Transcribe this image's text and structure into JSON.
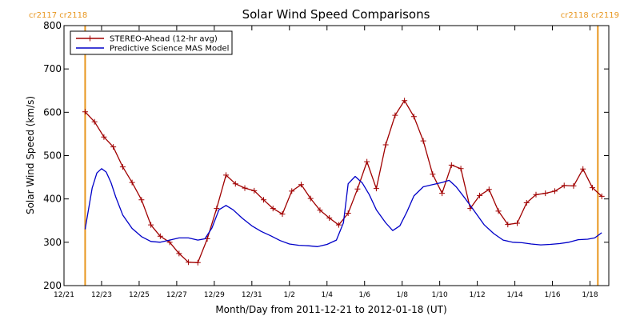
{
  "chart_data": {
    "type": "line",
    "title": "Solar Wind Speed Comparisons",
    "xlabel": "Month/Day from 2011-12-21 to 2012-01-18 (UT)",
    "ylabel": "Solar Wind Speed (km/s)",
    "xlim": [
      "2011-12-21",
      "2012-01-19"
    ],
    "ylim": [
      200,
      800
    ],
    "yticks": [
      200,
      300,
      400,
      500,
      600,
      700,
      800
    ],
    "xticks": [
      {
        "date": "2011-12-21",
        "label": "12/21"
      },
      {
        "date": "2011-12-23",
        "label": "12/23"
      },
      {
        "date": "2011-12-25",
        "label": "12/25"
      },
      {
        "date": "2011-12-27",
        "label": "12/27"
      },
      {
        "date": "2011-12-29",
        "label": "12/29"
      },
      {
        "date": "2011-12-31",
        "label": "12/31"
      },
      {
        "date": "2012-01-02",
        "label": "1/2"
      },
      {
        "date": "2012-01-04",
        "label": "1/4"
      },
      {
        "date": "2012-01-06",
        "label": "1/6"
      },
      {
        "date": "2012-01-08",
        "label": "1/8"
      },
      {
        "date": "2012-01-10",
        "label": "1/10"
      },
      {
        "date": "2012-01-12",
        "label": "1/12"
      },
      {
        "date": "2012-01-14",
        "label": "1/14"
      },
      {
        "date": "2012-01-16",
        "label": "1/16"
      },
      {
        "date": "2012-01-18",
        "label": "1/18"
      }
    ],
    "carrington_markers": [
      {
        "date": "2011-12-22 03:00",
        "labels": [
          "cr2117",
          "cr2118"
        ],
        "label_align": "left"
      },
      {
        "date": "2012-01-18 10:00",
        "labels": [
          "cr2118",
          "cr2119"
        ],
        "label_align": "right"
      }
    ],
    "legend_position": "top-left",
    "grid": false,
    "series": [
      {
        "name": "STEREO-Ahead (12-hr avg)",
        "color": "#a00000",
        "marker": "plus",
        "points": [
          [
            "2011-12-22 03:00",
            601
          ],
          [
            "2011-12-22 15:00",
            578
          ],
          [
            "2011-12-23 03:00",
            543
          ],
          [
            "2011-12-23 15:00",
            520
          ],
          [
            "2011-12-24 03:00",
            474
          ],
          [
            "2011-12-24 15:00",
            438
          ],
          [
            "2011-12-25 03:00",
            398
          ],
          [
            "2011-12-25 15:00",
            340
          ],
          [
            "2011-12-26 03:00",
            314
          ],
          [
            "2011-12-26 15:00",
            300
          ],
          [
            "2011-12-27 03:00",
            274
          ],
          [
            "2011-12-27 15:00",
            254
          ],
          [
            "2011-12-28 03:00",
            253
          ],
          [
            "2011-12-28 15:00",
            308
          ],
          [
            "2011-12-29 03:00",
            378
          ],
          [
            "2011-12-29 15:00",
            455
          ],
          [
            "2011-12-30 03:00",
            435
          ],
          [
            "2011-12-30 15:00",
            425
          ],
          [
            "2011-12-31 03:00",
            419
          ],
          [
            "2011-12-31 15:00",
            398
          ],
          [
            "2012-01-01 03:00",
            378
          ],
          [
            "2012-01-01 15:00",
            365
          ],
          [
            "2012-01-02 03:00",
            418
          ],
          [
            "2012-01-02 15:00",
            433
          ],
          [
            "2012-01-03 03:00",
            401
          ],
          [
            "2012-01-03 15:00",
            374
          ],
          [
            "2012-01-04 03:00",
            356
          ],
          [
            "2012-01-04 15:00",
            340
          ],
          [
            "2012-01-05 03:00",
            367
          ],
          [
            "2012-01-05 15:00",
            423
          ],
          [
            "2012-01-06 03:00",
            486
          ],
          [
            "2012-01-06 15:00",
            424
          ],
          [
            "2012-01-07 03:00",
            525
          ],
          [
            "2012-01-07 15:00",
            593
          ],
          [
            "2012-01-08 03:00",
            627
          ],
          [
            "2012-01-08 15:00",
            590
          ],
          [
            "2012-01-09 03:00",
            534
          ],
          [
            "2012-01-09 15:00",
            457
          ],
          [
            "2012-01-10 03:00",
            413
          ],
          [
            "2012-01-10 15:00",
            478
          ],
          [
            "2012-01-11 03:00",
            470
          ],
          [
            "2012-01-11 15:00",
            378
          ],
          [
            "2012-01-12 03:00",
            408
          ],
          [
            "2012-01-12 15:00",
            422
          ],
          [
            "2012-01-13 03:00",
            372
          ],
          [
            "2012-01-13 15:00",
            341
          ],
          [
            "2012-01-14 03:00",
            344
          ],
          [
            "2012-01-14 15:00",
            391
          ],
          [
            "2012-01-15 03:00",
            410
          ],
          [
            "2012-01-15 15:00",
            413
          ],
          [
            "2012-01-16 03:00",
            418
          ],
          [
            "2012-01-16 15:00",
            431
          ],
          [
            "2012-01-17 03:00",
            430
          ],
          [
            "2012-01-17 15:00",
            469
          ],
          [
            "2012-01-18 03:00",
            426
          ],
          [
            "2012-01-18 15:00",
            406
          ]
        ]
      },
      {
        "name": "Predictive Science MAS Model",
        "color": "#0000c8",
        "marker": "none",
        "points": [
          [
            "2011-12-22 03:00",
            330
          ],
          [
            "2011-12-22 12:00",
            425
          ],
          [
            "2011-12-22 18:00",
            460
          ],
          [
            "2011-12-23 00:00",
            470
          ],
          [
            "2011-12-23 06:00",
            462
          ],
          [
            "2011-12-23 12:00",
            438
          ],
          [
            "2011-12-23 18:00",
            405
          ],
          [
            "2011-12-24 03:00",
            363
          ],
          [
            "2011-12-24 15:00",
            332
          ],
          [
            "2011-12-25 03:00",
            313
          ],
          [
            "2011-12-25 15:00",
            302
          ],
          [
            "2011-12-26 03:00",
            300
          ],
          [
            "2011-12-26 15:00",
            305
          ],
          [
            "2011-12-27 03:00",
            310
          ],
          [
            "2011-12-27 15:00",
            310
          ],
          [
            "2011-12-28 03:00",
            305
          ],
          [
            "2011-12-28 12:00",
            308
          ],
          [
            "2011-12-28 21:00",
            333
          ],
          [
            "2011-12-29 06:00",
            375
          ],
          [
            "2011-12-29 15:00",
            385
          ],
          [
            "2011-12-30 00:00",
            375
          ],
          [
            "2011-12-30 12:00",
            355
          ],
          [
            "2011-12-31 00:00",
            338
          ],
          [
            "2011-12-31 12:00",
            325
          ],
          [
            "2012-01-01 00:00",
            315
          ],
          [
            "2012-01-01 12:00",
            304
          ],
          [
            "2012-01-02 00:00",
            296
          ],
          [
            "2012-01-02 12:00",
            293
          ],
          [
            "2012-01-03 00:00",
            292
          ],
          [
            "2012-01-03 12:00",
            290
          ],
          [
            "2012-01-04 00:00",
            295
          ],
          [
            "2012-01-04 12:00",
            305
          ],
          [
            "2012-01-04 21:00",
            345
          ],
          [
            "2012-01-05 03:00",
            435
          ],
          [
            "2012-01-05 12:00",
            452
          ],
          [
            "2012-01-05 21:00",
            437
          ],
          [
            "2012-01-06 06:00",
            410
          ],
          [
            "2012-01-06 15:00",
            375
          ],
          [
            "2012-01-07 03:00",
            345
          ],
          [
            "2012-01-07 12:00",
            327
          ],
          [
            "2012-01-07 21:00",
            338
          ],
          [
            "2012-01-08 06:00",
            370
          ],
          [
            "2012-01-08 15:00",
            407
          ],
          [
            "2012-01-09 03:00",
            428
          ],
          [
            "2012-01-09 15:00",
            433
          ],
          [
            "2012-01-10 03:00",
            438
          ],
          [
            "2012-01-10 12:00",
            443
          ],
          [
            "2012-01-10 21:00",
            428
          ],
          [
            "2012-01-11 09:00",
            400
          ],
          [
            "2012-01-11 21:00",
            370
          ],
          [
            "2012-01-12 09:00",
            340
          ],
          [
            "2012-01-12 21:00",
            320
          ],
          [
            "2012-01-13 09:00",
            305
          ],
          [
            "2012-01-13 21:00",
            300
          ],
          [
            "2012-01-14 09:00",
            299
          ],
          [
            "2012-01-14 21:00",
            296
          ],
          [
            "2012-01-15 09:00",
            294
          ],
          [
            "2012-01-15 21:00",
            295
          ],
          [
            "2012-01-16 09:00",
            297
          ],
          [
            "2012-01-16 21:00",
            300
          ],
          [
            "2012-01-17 09:00",
            306
          ],
          [
            "2012-01-17 21:00",
            307
          ],
          [
            "2012-01-18 06:00",
            310
          ],
          [
            "2012-01-18 15:00",
            322
          ]
        ]
      }
    ]
  }
}
